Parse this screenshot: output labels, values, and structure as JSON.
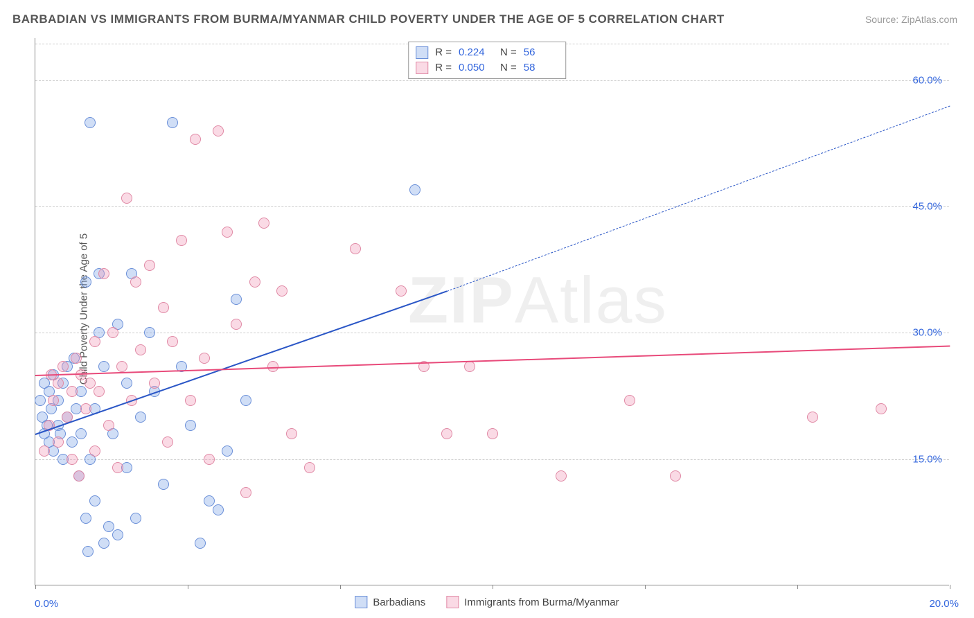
{
  "title": "BARBADIAN VS IMMIGRANTS FROM BURMA/MYANMAR CHILD POVERTY UNDER THE AGE OF 5 CORRELATION CHART",
  "source": "Source: ZipAtlas.com",
  "watermark_a": "ZIP",
  "watermark_b": "Atlas",
  "y_axis_title": "Child Poverty Under the Age of 5",
  "x_min_label": "0.0%",
  "x_max_label": "20.0%",
  "chart": {
    "type": "scatter-with-regression",
    "xlim": [
      0,
      20
    ],
    "ylim": [
      0,
      65
    ],
    "y_gridlines": [
      15,
      30,
      45,
      60
    ],
    "y_tick_labels": [
      "15.0%",
      "30.0%",
      "45.0%",
      "60.0%"
    ],
    "x_ticks": [
      0,
      3.33,
      6.67,
      10,
      13.33,
      16.67,
      20
    ],
    "background_color": "#ffffff",
    "grid_color": "#cccccc",
    "axis_color": "#888888",
    "point_radius": 8,
    "point_stroke_width": 1.2,
    "series": [
      {
        "name": "Barbadians",
        "fill": "rgba(120,160,230,0.35)",
        "stroke": "#6a8fd8",
        "line_color": "#2a56c6",
        "r_value": "0.224",
        "n_value": "56",
        "regression": {
          "x1": 0,
          "y1": 18,
          "x2": 9,
          "y2": 35,
          "extend_to_x": 20,
          "extend_to_y": 57
        },
        "points": [
          [
            0.1,
            22
          ],
          [
            0.15,
            20
          ],
          [
            0.2,
            24
          ],
          [
            0.2,
            18
          ],
          [
            0.25,
            19
          ],
          [
            0.3,
            23
          ],
          [
            0.3,
            17
          ],
          [
            0.35,
            21
          ],
          [
            0.4,
            25
          ],
          [
            0.4,
            16
          ],
          [
            0.5,
            22
          ],
          [
            0.5,
            19
          ],
          [
            0.55,
            18
          ],
          [
            0.6,
            24
          ],
          [
            0.6,
            15
          ],
          [
            0.7,
            26
          ],
          [
            0.7,
            20
          ],
          [
            0.8,
            17
          ],
          [
            0.85,
            27
          ],
          [
            0.9,
            21
          ],
          [
            0.95,
            13
          ],
          [
            1.0,
            18
          ],
          [
            1.0,
            23
          ],
          [
            1.1,
            36
          ],
          [
            1.1,
            8
          ],
          [
            1.15,
            4
          ],
          [
            1.2,
            55
          ],
          [
            1.2,
            15
          ],
          [
            1.3,
            21
          ],
          [
            1.3,
            10
          ],
          [
            1.4,
            30
          ],
          [
            1.4,
            37
          ],
          [
            1.5,
            26
          ],
          [
            1.5,
            5
          ],
          [
            1.6,
            7
          ],
          [
            1.7,
            18
          ],
          [
            1.8,
            31
          ],
          [
            1.8,
            6
          ],
          [
            2.0,
            24
          ],
          [
            2.0,
            14
          ],
          [
            2.1,
            37
          ],
          [
            2.2,
            8
          ],
          [
            2.3,
            20
          ],
          [
            2.5,
            30
          ],
          [
            2.6,
            23
          ],
          [
            2.8,
            12
          ],
          [
            3.0,
            55
          ],
          [
            3.2,
            26
          ],
          [
            3.4,
            19
          ],
          [
            3.6,
            5
          ],
          [
            3.8,
            10
          ],
          [
            4.0,
            9
          ],
          [
            4.2,
            16
          ],
          [
            4.4,
            34
          ],
          [
            4.6,
            22
          ],
          [
            8.3,
            47
          ]
        ]
      },
      {
        "name": "Immigrants from Burma/Myanmar",
        "fill": "rgba(240,150,180,0.35)",
        "stroke": "#e089a5",
        "line_color": "#e84a7a",
        "r_value": "0.050",
        "n_value": "58",
        "regression": {
          "x1": 0,
          "y1": 25,
          "x2": 20,
          "y2": 28.5,
          "extend_to_x": 20,
          "extend_to_y": 28.5
        },
        "points": [
          [
            0.2,
            16
          ],
          [
            0.3,
            19
          ],
          [
            0.35,
            25
          ],
          [
            0.4,
            22
          ],
          [
            0.5,
            24
          ],
          [
            0.5,
            17
          ],
          [
            0.6,
            26
          ],
          [
            0.7,
            20
          ],
          [
            0.8,
            23
          ],
          [
            0.8,
            15
          ],
          [
            0.9,
            27
          ],
          [
            0.95,
            13
          ],
          [
            1.0,
            25
          ],
          [
            1.1,
            21
          ],
          [
            1.2,
            24
          ],
          [
            1.3,
            29
          ],
          [
            1.3,
            16
          ],
          [
            1.4,
            23
          ],
          [
            1.5,
            37
          ],
          [
            1.6,
            19
          ],
          [
            1.7,
            30
          ],
          [
            1.8,
            14
          ],
          [
            1.9,
            26
          ],
          [
            2.0,
            46
          ],
          [
            2.1,
            22
          ],
          [
            2.2,
            36
          ],
          [
            2.3,
            28
          ],
          [
            2.5,
            38
          ],
          [
            2.6,
            24
          ],
          [
            2.8,
            33
          ],
          [
            2.9,
            17
          ],
          [
            3.0,
            29
          ],
          [
            3.2,
            41
          ],
          [
            3.4,
            22
          ],
          [
            3.5,
            53
          ],
          [
            3.7,
            27
          ],
          [
            3.8,
            15
          ],
          [
            4.0,
            54
          ],
          [
            4.2,
            42
          ],
          [
            4.4,
            31
          ],
          [
            4.6,
            11
          ],
          [
            4.8,
            36
          ],
          [
            5.0,
            43
          ],
          [
            5.2,
            26
          ],
          [
            5.4,
            35
          ],
          [
            5.6,
            18
          ],
          [
            6.0,
            14
          ],
          [
            7.0,
            40
          ],
          [
            8.0,
            35
          ],
          [
            8.5,
            26
          ],
          [
            9.0,
            18
          ],
          [
            9.5,
            26
          ],
          [
            10.0,
            18
          ],
          [
            11.5,
            13
          ],
          [
            13.0,
            22
          ],
          [
            14.0,
            13
          ],
          [
            17.0,
            20
          ],
          [
            18.5,
            21
          ]
        ]
      }
    ]
  },
  "stat_legend_labels": {
    "R": "R =",
    "N": "N ="
  },
  "bottom_legend": {
    "items": [
      "Barbadians",
      "Immigrants from Burma/Myanmar"
    ]
  }
}
